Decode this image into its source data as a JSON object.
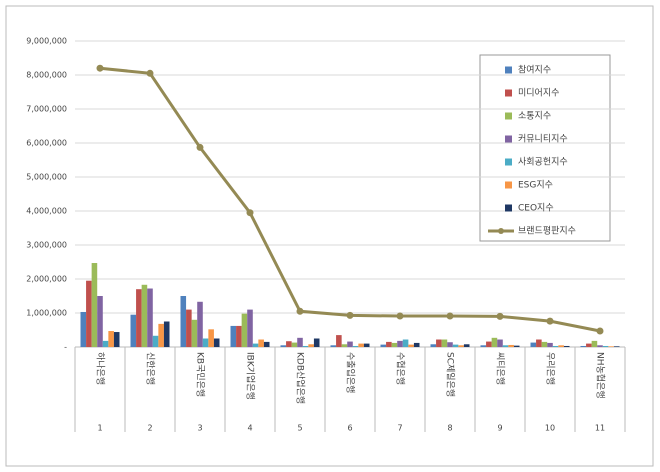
{
  "chart_data": {
    "type": "bar",
    "categories": [
      "하나은행",
      "신한은행",
      "KB국민은행",
      "IBK기업은행",
      "KDB산업은행",
      "수출입은행",
      "수협은행",
      "SC제일은행",
      "씨티은행",
      "우리은행",
      "NH농협은행"
    ],
    "category_numbers": [
      1,
      2,
      3,
      4,
      5,
      6,
      7,
      8,
      9,
      10,
      11
    ],
    "series": [
      {
        "name": "참여지수",
        "color": "#4f81bd",
        "values": [
          1030000,
          950000,
          1500000,
          620000,
          50000,
          50000,
          70000,
          80000,
          50000,
          130000,
          30000
        ]
      },
      {
        "name": "미디어지수",
        "color": "#c0504d",
        "values": [
          1950000,
          1700000,
          1100000,
          620000,
          170000,
          350000,
          150000,
          220000,
          160000,
          220000,
          100000
        ]
      },
      {
        "name": "소통지수",
        "color": "#9bbb59",
        "values": [
          2470000,
          1830000,
          800000,
          980000,
          130000,
          80000,
          120000,
          220000,
          270000,
          150000,
          180000
        ]
      },
      {
        "name": "커뮤니티지수",
        "color": "#8064a2",
        "values": [
          1500000,
          1720000,
          1330000,
          1100000,
          270000,
          160000,
          180000,
          140000,
          220000,
          120000,
          50000
        ]
      },
      {
        "name": "사회공헌지수",
        "color": "#4bacc6",
        "values": [
          180000,
          330000,
          250000,
          100000,
          30000,
          30000,
          220000,
          70000,
          50000,
          30000,
          30000
        ]
      },
      {
        "name": "ESG지수",
        "color": "#f79646",
        "values": [
          470000,
          680000,
          520000,
          220000,
          80000,
          100000,
          70000,
          50000,
          60000,
          50000,
          20000
        ]
      },
      {
        "name": "CEO지수",
        "color": "#1f3864",
        "values": [
          440000,
          750000,
          250000,
          150000,
          250000,
          100000,
          120000,
          80000,
          40000,
          30000,
          20000
        ]
      },
      {
        "name": "브랜드평판지수",
        "color": "#948a54",
        "type": "line",
        "values": [
          8200000,
          8050000,
          5870000,
          3950000,
          1050000,
          930000,
          910000,
          910000,
          900000,
          760000,
          470000
        ]
      }
    ],
    "ylim": [
      0,
      9000000
    ],
    "yticks": [
      {
        "value": 0,
        "label": "-"
      },
      {
        "value": 1000000,
        "label": "1,000,000"
      },
      {
        "value": 2000000,
        "label": "2,000,000"
      },
      {
        "value": 3000000,
        "label": "3,000,000"
      },
      {
        "value": 4000000,
        "label": "4,000,000"
      },
      {
        "value": 5000000,
        "label": "5,000,000"
      },
      {
        "value": 6000000,
        "label": "6,000,000"
      },
      {
        "value": 7000000,
        "label": "7,000,000"
      },
      {
        "value": 8000000,
        "label": "8,000,000"
      },
      {
        "value": 9000000,
        "label": "9,000,000"
      }
    ],
    "grid": true
  }
}
